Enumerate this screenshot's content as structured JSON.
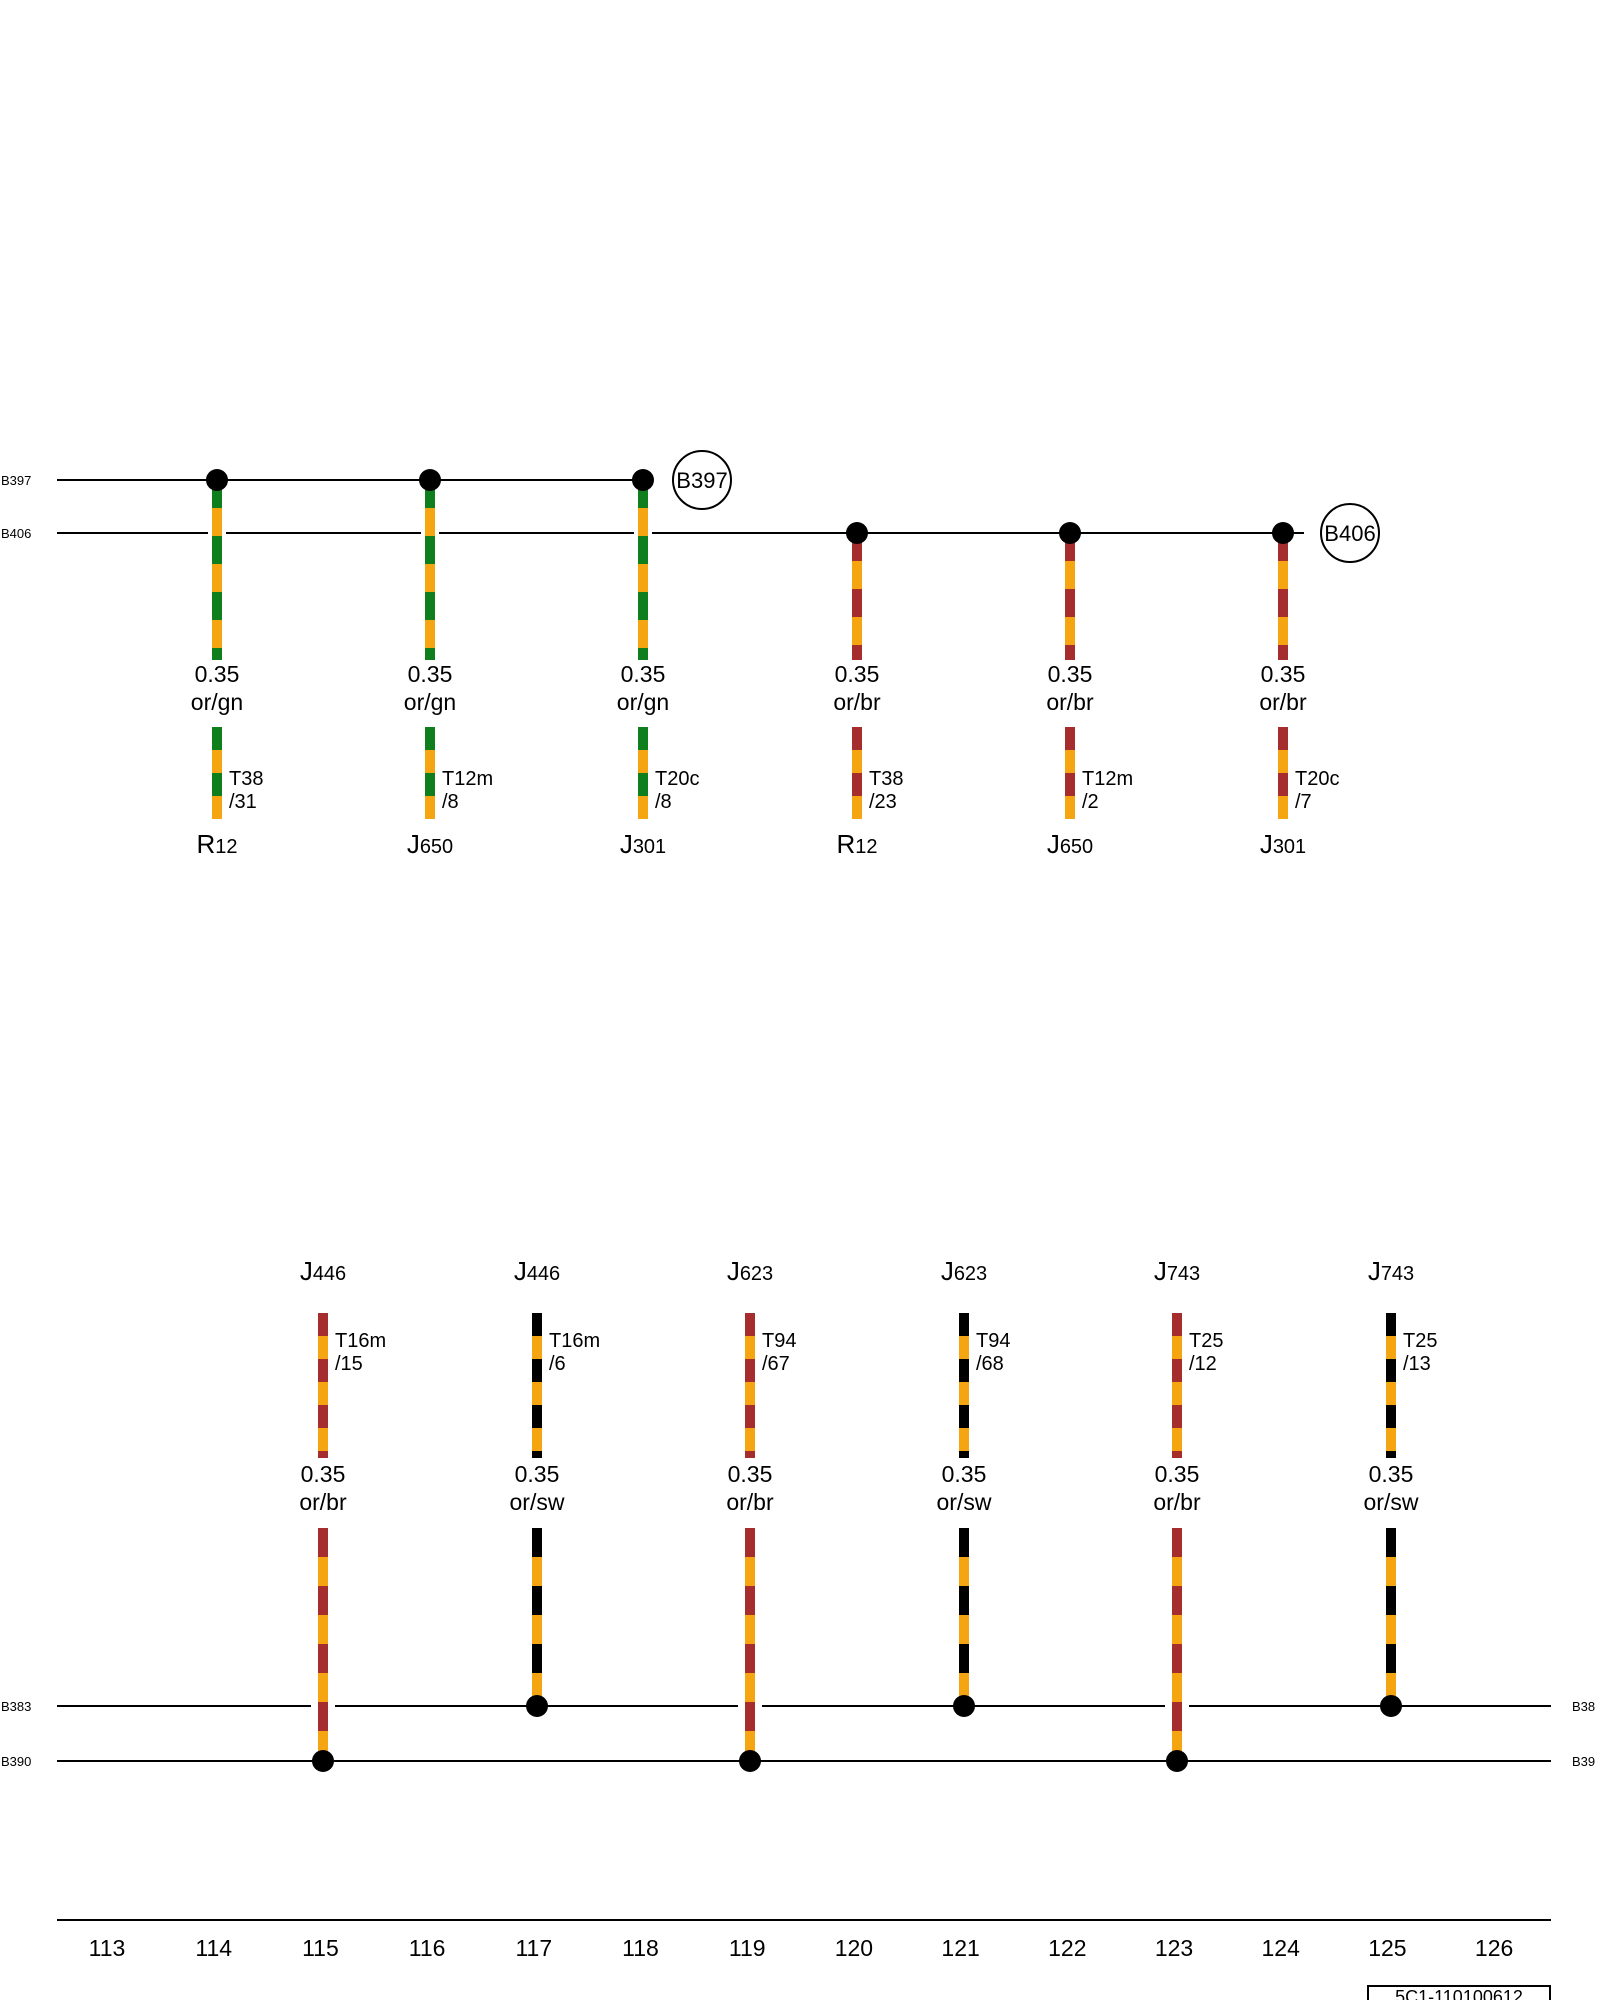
{
  "colors": {
    "or": "#f5a412",
    "gn": "#0e7f1c",
    "br": "#a62d2d",
    "sw": "#000000",
    "line": "#000000"
  },
  "top_buses": [
    {
      "id": "bus-b397",
      "label": "B397",
      "ref_label": "B397"
    },
    {
      "id": "bus-b406",
      "label": "B406",
      "ref_label": "B406"
    }
  ],
  "bottom_buses": [
    {
      "id": "bus-b383",
      "left_label": "B383",
      "right_label": "B38"
    },
    {
      "id": "bus-b390",
      "left_label": "B390",
      "right_label": "B39"
    }
  ],
  "top_wires": [
    {
      "bus": "B397",
      "gauge": "0.35",
      "color_code": "or/gn",
      "stripe": "gn",
      "pin_conn": "T38",
      "pin_num": "/31",
      "comp_letter": "R",
      "comp_num": "12"
    },
    {
      "bus": "B397",
      "gauge": "0.35",
      "color_code": "or/gn",
      "stripe": "gn",
      "pin_conn": "T12m",
      "pin_num": "/8",
      "comp_letter": "J",
      "comp_num": "650"
    },
    {
      "bus": "B397",
      "gauge": "0.35",
      "color_code": "or/gn",
      "stripe": "gn",
      "pin_conn": "T20c",
      "pin_num": "/8",
      "comp_letter": "J",
      "comp_num": "301"
    },
    {
      "bus": "B406",
      "gauge": "0.35",
      "color_code": "or/br",
      "stripe": "br",
      "pin_conn": "T38",
      "pin_num": "/23",
      "comp_letter": "R",
      "comp_num": "12"
    },
    {
      "bus": "B406",
      "gauge": "0.35",
      "color_code": "or/br",
      "stripe": "br",
      "pin_conn": "T12m",
      "pin_num": "/2",
      "comp_letter": "J",
      "comp_num": "650"
    },
    {
      "bus": "B406",
      "gauge": "0.35",
      "color_code": "or/br",
      "stripe": "br",
      "pin_conn": "T20c",
      "pin_num": "/7",
      "comp_letter": "J",
      "comp_num": "301"
    }
  ],
  "bottom_wires": [
    {
      "bus": "B390",
      "gauge": "0.35",
      "color_code": "or/br",
      "stripe": "br",
      "pin_conn": "T16m",
      "pin_num": "/15",
      "comp_letter": "J",
      "comp_num": "446"
    },
    {
      "bus": "B383",
      "gauge": "0.35",
      "color_code": "or/sw",
      "stripe": "sw",
      "pin_conn": "T16m",
      "pin_num": "/6",
      "comp_letter": "J",
      "comp_num": "446"
    },
    {
      "bus": "B390",
      "gauge": "0.35",
      "color_code": "or/br",
      "stripe": "br",
      "pin_conn": "T94",
      "pin_num": "/67",
      "comp_letter": "J",
      "comp_num": "623"
    },
    {
      "bus": "B383",
      "gauge": "0.35",
      "color_code": "or/sw",
      "stripe": "sw",
      "pin_conn": "T94",
      "pin_num": "/68",
      "comp_letter": "J",
      "comp_num": "623"
    },
    {
      "bus": "B390",
      "gauge": "0.35",
      "color_code": "or/br",
      "stripe": "br",
      "pin_conn": "T25",
      "pin_num": "/12",
      "comp_letter": "J",
      "comp_num": "743"
    },
    {
      "bus": "B383",
      "gauge": "0.35",
      "color_code": "or/sw",
      "stripe": "sw",
      "pin_conn": "T25",
      "pin_num": "/13",
      "comp_letter": "J",
      "comp_num": "743"
    }
  ],
  "axis_numbers": [
    "113",
    "114",
    "115",
    "116",
    "117",
    "118",
    "119",
    "120",
    "121",
    "122",
    "123",
    "124",
    "125",
    "126"
  ],
  "stamp": "5C1-110100612"
}
